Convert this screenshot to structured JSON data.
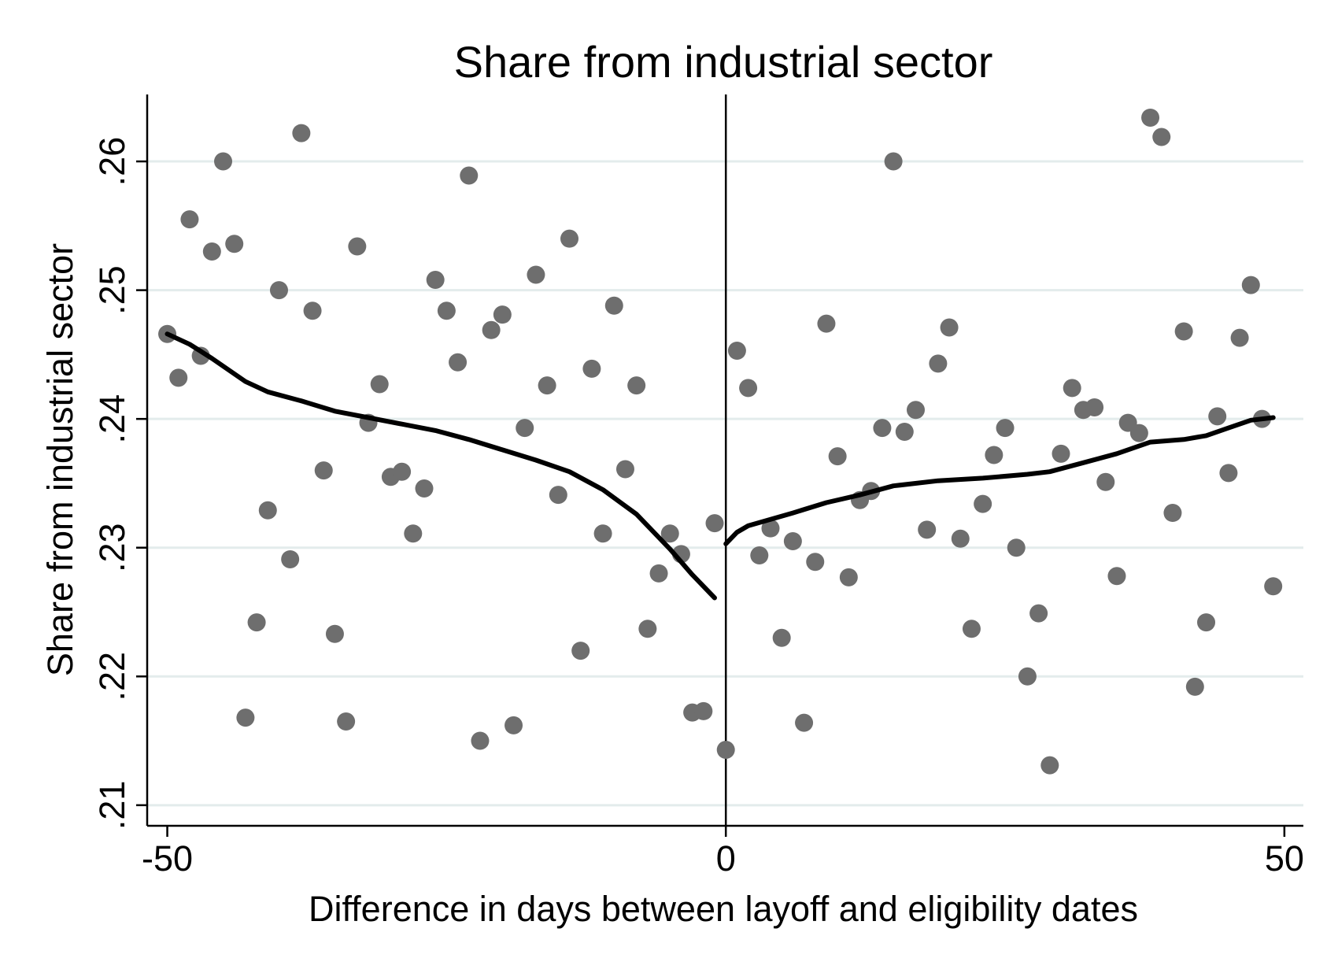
{
  "chart_data": {
    "type": "scatter",
    "title": "Share from industrial sector",
    "xlabel": "Difference in days between layoff and eligibility dates",
    "ylabel": "Share from industrial sector",
    "xlim": [
      -51.8,
      51.7
    ],
    "ylim": [
      0.2084,
      0.2652
    ],
    "x_ticks": [
      -50,
      0,
      50
    ],
    "x_tick_labels": [
      "-50",
      "0",
      "50"
    ],
    "y_ticks": [
      0.21,
      0.22,
      0.23,
      0.24,
      0.25,
      0.26
    ],
    "y_tick_labels": [
      ".21",
      ".22",
      ".23",
      ".24",
      ".25",
      ".26"
    ],
    "grid": "horizontal",
    "cutoff": 0,
    "colors": {
      "points": "#6e6e6e",
      "fit": "#000000",
      "grid": "#e3ecec",
      "axis": "#000000"
    },
    "points": [
      {
        "x": -50,
        "y": 0.2466
      },
      {
        "x": -49,
        "y": 0.2432
      },
      {
        "x": -48,
        "y": 0.2555
      },
      {
        "x": -47,
        "y": 0.2449
      },
      {
        "x": -46,
        "y": 0.253
      },
      {
        "x": -45,
        "y": 0.26
      },
      {
        "x": -44,
        "y": 0.2536
      },
      {
        "x": -43,
        "y": 0.2168
      },
      {
        "x": -42,
        "y": 0.2242
      },
      {
        "x": -41,
        "y": 0.2329
      },
      {
        "x": -40,
        "y": 0.25
      },
      {
        "x": -39,
        "y": 0.2291
      },
      {
        "x": -38,
        "y": 0.2622
      },
      {
        "x": -37,
        "y": 0.2484
      },
      {
        "x": -36,
        "y": 0.236
      },
      {
        "x": -35,
        "y": 0.2233
      },
      {
        "x": -34,
        "y": 0.2165
      },
      {
        "x": -33,
        "y": 0.2534
      },
      {
        "x": -32,
        "y": 0.2397
      },
      {
        "x": -31,
        "y": 0.2427
      },
      {
        "x": -30,
        "y": 0.2355
      },
      {
        "x": -29,
        "y": 0.2359
      },
      {
        "x": -28,
        "y": 0.2311
      },
      {
        "x": -27,
        "y": 0.2346
      },
      {
        "x": -26,
        "y": 0.2508
      },
      {
        "x": -25,
        "y": 0.2484
      },
      {
        "x": -24,
        "y": 0.2444
      },
      {
        "x": -23,
        "y": 0.2589
      },
      {
        "x": -22,
        "y": 0.215
      },
      {
        "x": -21,
        "y": 0.2469
      },
      {
        "x": -20,
        "y": 0.2481
      },
      {
        "x": -19,
        "y": 0.2162
      },
      {
        "x": -18,
        "y": 0.2393
      },
      {
        "x": -17,
        "y": 0.2512
      },
      {
        "x": -16,
        "y": 0.2426
      },
      {
        "x": -15,
        "y": 0.2341
      },
      {
        "x": -14,
        "y": 0.254
      },
      {
        "x": -13,
        "y": 0.222
      },
      {
        "x": -12,
        "y": 0.2439
      },
      {
        "x": -11,
        "y": 0.2311
      },
      {
        "x": -10,
        "y": 0.2488
      },
      {
        "x": -9,
        "y": 0.2361
      },
      {
        "x": -8,
        "y": 0.2426
      },
      {
        "x": -7,
        "y": 0.2237
      },
      {
        "x": -6,
        "y": 0.228
      },
      {
        "x": -5,
        "y": 0.2311
      },
      {
        "x": -4,
        "y": 0.2295
      },
      {
        "x": -3,
        "y": 0.2172
      },
      {
        "x": -2,
        "y": 0.2173
      },
      {
        "x": -1,
        "y": 0.2319
      },
      {
        "x": 0,
        "y": 0.2143
      },
      {
        "x": 1,
        "y": 0.2453
      },
      {
        "x": 2,
        "y": 0.2424
      },
      {
        "x": 3,
        "y": 0.2294
      },
      {
        "x": 4,
        "y": 0.2315
      },
      {
        "x": 5,
        "y": 0.223
      },
      {
        "x": 6,
        "y": 0.2305
      },
      {
        "x": 7,
        "y": 0.2164
      },
      {
        "x": 8,
        "y": 0.2289
      },
      {
        "x": 9,
        "y": 0.2474
      },
      {
        "x": 10,
        "y": 0.2371
      },
      {
        "x": 11,
        "y": 0.2277
      },
      {
        "x": 12,
        "y": 0.2337
      },
      {
        "x": 13,
        "y": 0.2344
      },
      {
        "x": 14,
        "y": 0.2393
      },
      {
        "x": 15,
        "y": 0.26
      },
      {
        "x": 16,
        "y": 0.239
      },
      {
        "x": 17,
        "y": 0.2407
      },
      {
        "x": 18,
        "y": 0.2314
      },
      {
        "x": 19,
        "y": 0.2443
      },
      {
        "x": 20,
        "y": 0.2471
      },
      {
        "x": 21,
        "y": 0.2307
      },
      {
        "x": 22,
        "y": 0.2237
      },
      {
        "x": 23,
        "y": 0.2334
      },
      {
        "x": 24,
        "y": 0.2372
      },
      {
        "x": 25,
        "y": 0.2393
      },
      {
        "x": 26,
        "y": 0.23
      },
      {
        "x": 27,
        "y": 0.22
      },
      {
        "x": 28,
        "y": 0.2249
      },
      {
        "x": 29,
        "y": 0.2131
      },
      {
        "x": 30,
        "y": 0.2373
      },
      {
        "x": 31,
        "y": 0.2424
      },
      {
        "x": 32,
        "y": 0.2407
      },
      {
        "x": 33,
        "y": 0.2409
      },
      {
        "x": 34,
        "y": 0.2351
      },
      {
        "x": 35,
        "y": 0.2278
      },
      {
        "x": 36,
        "y": 0.2397
      },
      {
        "x": 37,
        "y": 0.2389
      },
      {
        "x": 38,
        "y": 0.2634
      },
      {
        "x": 39,
        "y": 0.2619
      },
      {
        "x": 40,
        "y": 0.2327
      },
      {
        "x": 41,
        "y": 0.2468
      },
      {
        "x": 42,
        "y": 0.2192
      },
      {
        "x": 43,
        "y": 0.2242
      },
      {
        "x": 44,
        "y": 0.2402
      },
      {
        "x": 45,
        "y": 0.2358
      },
      {
        "x": 46,
        "y": 0.2463
      },
      {
        "x": 47,
        "y": 0.2504
      },
      {
        "x": 48,
        "y": 0.24
      },
      {
        "x": 49,
        "y": 0.227
      }
    ],
    "fit_left": [
      {
        "x": -50,
        "y": 0.2466
      },
      {
        "x": -48,
        "y": 0.2458
      },
      {
        "x": -46,
        "y": 0.2447
      },
      {
        "x": -43,
        "y": 0.2429
      },
      {
        "x": -41,
        "y": 0.2421
      },
      {
        "x": -38,
        "y": 0.2414
      },
      {
        "x": -35,
        "y": 0.2406
      },
      {
        "x": -32,
        "y": 0.2401
      },
      {
        "x": -29,
        "y": 0.2396
      },
      {
        "x": -26,
        "y": 0.2391
      },
      {
        "x": -23,
        "y": 0.2384
      },
      {
        "x": -20,
        "y": 0.2376
      },
      {
        "x": -17,
        "y": 0.2368
      },
      {
        "x": -14,
        "y": 0.2359
      },
      {
        "x": -11,
        "y": 0.2345
      },
      {
        "x": -8,
        "y": 0.2326
      },
      {
        "x": -5,
        "y": 0.2299
      },
      {
        "x": -3,
        "y": 0.2279
      },
      {
        "x": -1,
        "y": 0.2261
      }
    ],
    "fit_right": [
      {
        "x": 0,
        "y": 0.2303
      },
      {
        "x": 1,
        "y": 0.2312
      },
      {
        "x": 2,
        "y": 0.2317
      },
      {
        "x": 4,
        "y": 0.2322
      },
      {
        "x": 6,
        "y": 0.2327
      },
      {
        "x": 9,
        "y": 0.2335
      },
      {
        "x": 12,
        "y": 0.2341
      },
      {
        "x": 15,
        "y": 0.2348
      },
      {
        "x": 19,
        "y": 0.2352
      },
      {
        "x": 23,
        "y": 0.2354
      },
      {
        "x": 27,
        "y": 0.2357
      },
      {
        "x": 29,
        "y": 0.2359
      },
      {
        "x": 32,
        "y": 0.2366
      },
      {
        "x": 35,
        "y": 0.2373
      },
      {
        "x": 38,
        "y": 0.2382
      },
      {
        "x": 41,
        "y": 0.2384
      },
      {
        "x": 43,
        "y": 0.2387
      },
      {
        "x": 45,
        "y": 0.2393
      },
      {
        "x": 47,
        "y": 0.2399
      },
      {
        "x": 49,
        "y": 0.2401
      }
    ]
  }
}
